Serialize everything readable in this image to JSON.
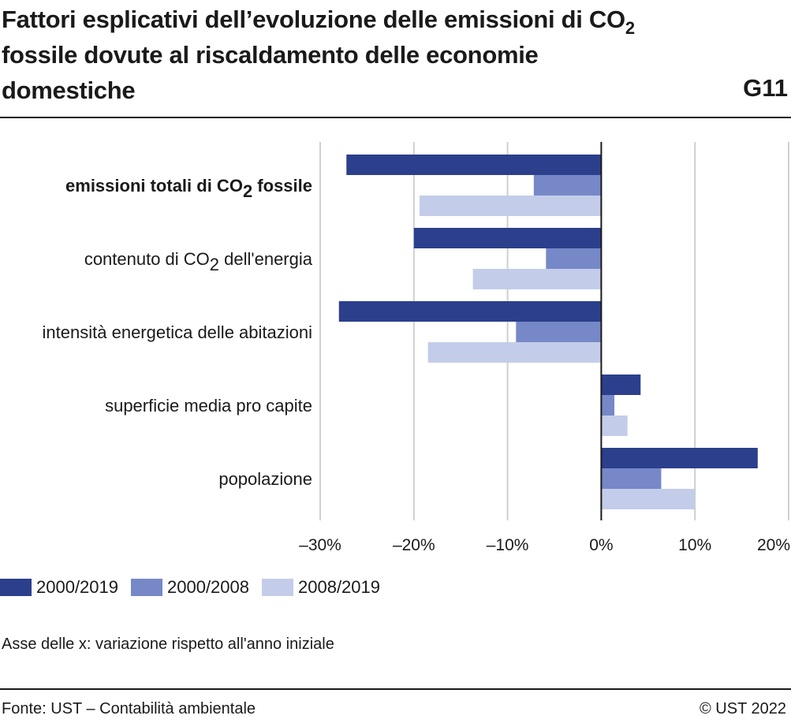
{
  "header": {
    "title_line1": "Fattori esplicativi dell’evoluzione delle emissioni di CO",
    "title_line1_sub": "2",
    "title_line2": "fossile dovute al riscaldamento delle economie",
    "title_line3": "domestiche",
    "figure_number": "G11"
  },
  "chart_data": {
    "type": "bar",
    "orientation": "horizontal",
    "categories": [
      "emissioni totali di CO2 fossile",
      "contenuto di CO2 dell'energia",
      "intensità energetica delle abitazioni",
      "superficie media pro capite",
      "popolazione"
    ],
    "category_labels": [
      {
        "pre": "emissioni totali di CO",
        "sub": "2",
        "post": " fossile",
        "bold": true
      },
      {
        "pre": "contenuto di CO",
        "sub": "2",
        "post": " dell'energia",
        "bold": false
      },
      {
        "pre": "intensità energetica delle abitazioni",
        "sub": "",
        "post": "",
        "bold": false
      },
      {
        "pre": "superficie media pro capite",
        "sub": "",
        "post": "",
        "bold": false
      },
      {
        "pre": "popolazione",
        "sub": "",
        "post": "",
        "bold": false
      }
    ],
    "series": [
      {
        "name": "2000/2019",
        "color": "#2b3f8c",
        "values": [
          -27.2,
          -20.0,
          -28.0,
          4.2,
          16.7
        ]
      },
      {
        "name": "2000/2008",
        "color": "#7688c7",
        "values": [
          -7.2,
          -5.9,
          -9.1,
          1.4,
          6.4
        ]
      },
      {
        "name": "2008/2019",
        "color": "#c3cdea",
        "values": [
          -19.4,
          -13.7,
          -18.5,
          2.8,
          10.0
        ]
      }
    ],
    "xlim": [
      -30,
      20
    ],
    "xticks": [
      -30,
      -20,
      -10,
      0,
      10,
      20
    ],
    "xtick_labels": [
      "–30%",
      "–20%",
      "–10%",
      "0%",
      "10%",
      "20%"
    ],
    "grid": true,
    "legend_position": "bottom-left"
  },
  "footer": {
    "axis_note": "Asse delle x: variazione rispetto all'anno iniziale",
    "source": "Fonte: UST – Contabilità ambientale",
    "copyright": "© UST 2022"
  }
}
